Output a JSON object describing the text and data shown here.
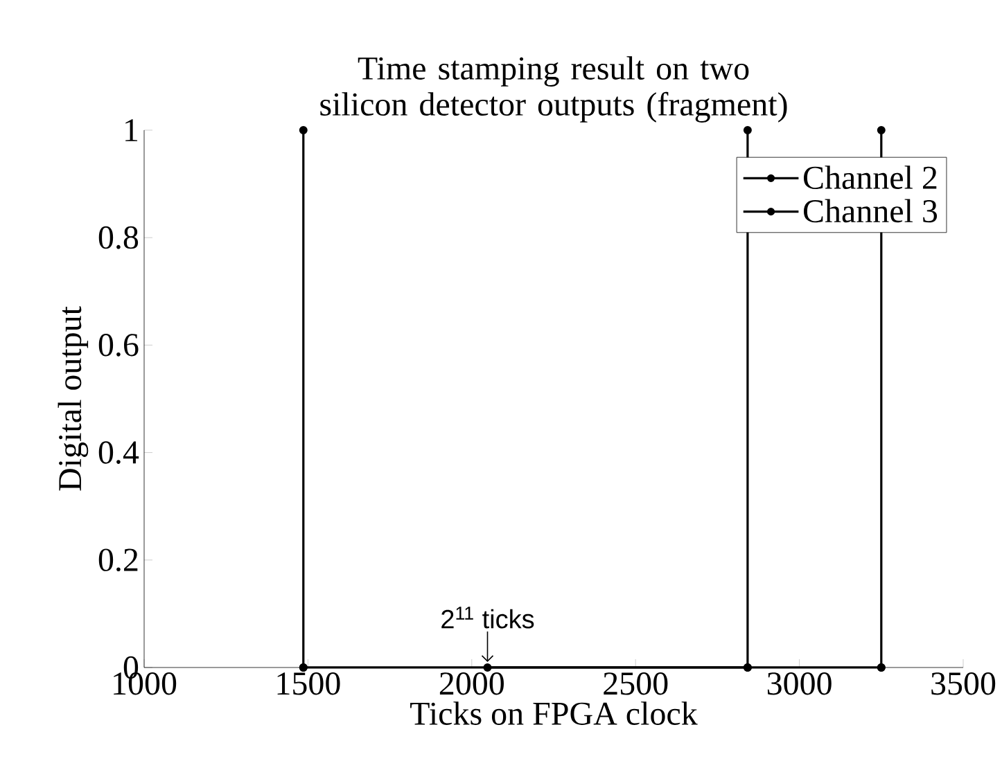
{
  "chart_data": {
    "type": "line",
    "title": "Time stamping result on two silicon detector outputs (fragment)",
    "xlabel": "Ticks on FPGA clock",
    "ylabel": "Digital output",
    "xlim": [
      1000,
      3500
    ],
    "ylim": [
      0,
      1
    ],
    "xticks": [
      1000,
      1500,
      2000,
      2500,
      3000,
      3500
    ],
    "yticks": [
      0,
      0.2,
      0.4,
      0.6,
      0.8,
      1
    ],
    "series": [
      {
        "name": "Channel 2",
        "color": "#000000",
        "x": [
          1486,
          1486,
          1486,
          2842,
          2842,
          2842
        ],
        "values": [
          0,
          1,
          0,
          0,
          1,
          0
        ]
      },
      {
        "name": "Channel 3",
        "color": "#000000",
        "x": [
          2048,
          3250,
          3250,
          3250
        ],
        "values": [
          0,
          0,
          1,
          0
        ]
      }
    ],
    "marker": "circle",
    "legend": "top right",
    "annotations": [
      {
        "text": "2$^{11}$ ticks",
        "x": 2048,
        "y": 0
      }
    ]
  }
}
